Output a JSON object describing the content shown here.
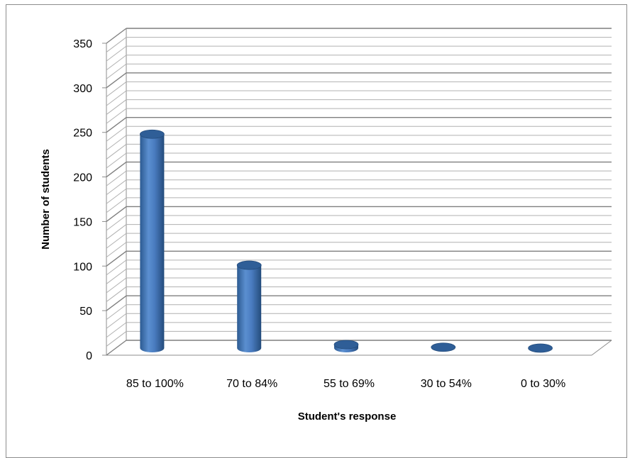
{
  "chart_data": {
    "type": "bar",
    "style": "3d-cylinder",
    "title": "",
    "xlabel": "Student's response",
    "ylabel": "Number of students",
    "categories": [
      "85 to 100%",
      "70 to 84%",
      "55 to 69%",
      "30 to 54%",
      "0 to 30%"
    ],
    "series": [
      {
        "values": [
          240,
          93,
          4,
          1,
          0
        ]
      }
    ],
    "ylim": [
      0,
      350
    ],
    "y_ticks": [
      "0",
      "50",
      "100",
      "150",
      "200",
      "250",
      "300",
      "350"
    ],
    "y_minor_step": 10,
    "grid": true,
    "legend": "none",
    "colors": {
      "bar": "#4f81bd",
      "bar_dark": "#2e5c94",
      "bar_top": "#2f5e97",
      "grid_major": "#7f7f7f",
      "grid_minor": "#b0b0b0",
      "frame": "#8c8c8c"
    }
  }
}
